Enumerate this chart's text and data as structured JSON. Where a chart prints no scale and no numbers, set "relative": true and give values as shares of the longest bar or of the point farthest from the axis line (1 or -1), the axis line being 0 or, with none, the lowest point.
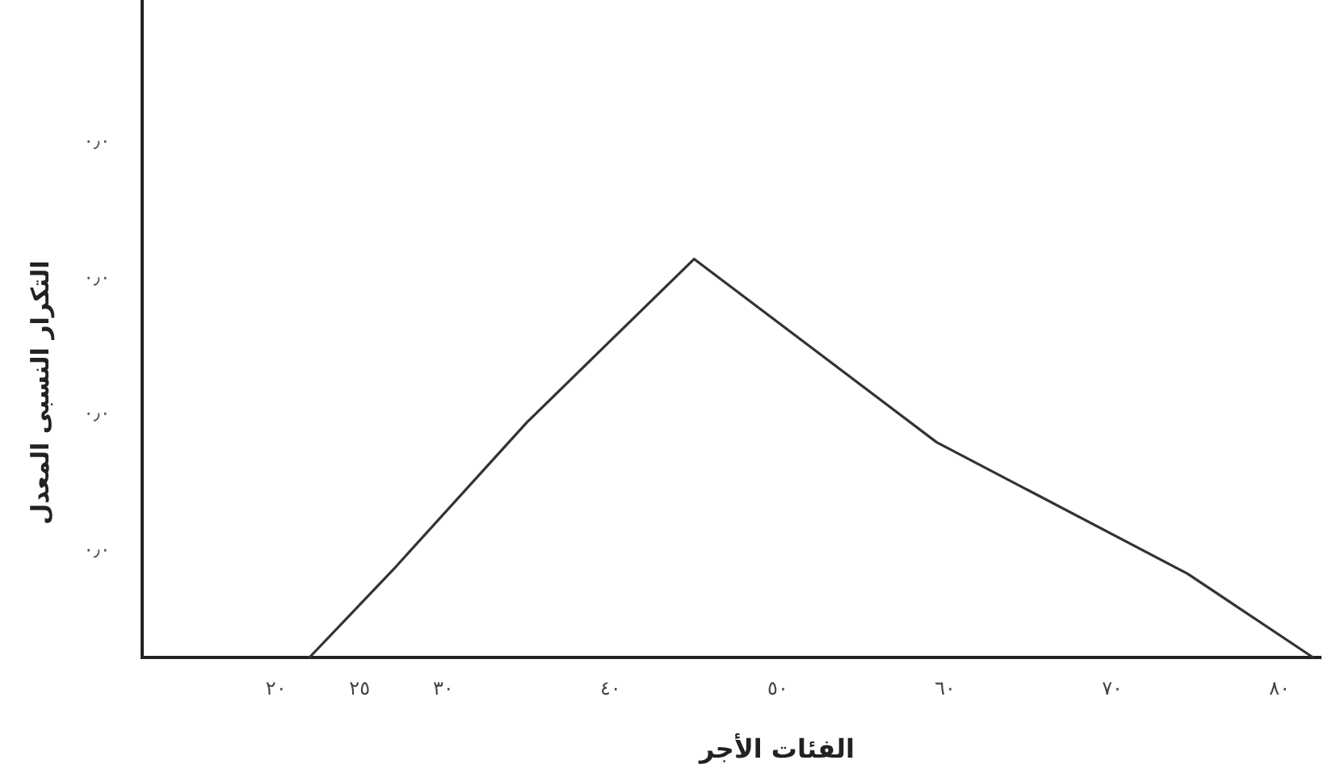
{
  "chart_data": {
    "type": "line",
    "xlabel": "الفئات الأجر",
    "ylabel": "التكرار النسبى المعدل",
    "x": [
      22,
      27,
      35,
      45,
      59.5,
      74.5,
      82
    ],
    "values": [
      0,
      0.22,
      0.59,
      1,
      0.54,
      0.21,
      0
    ],
    "color": "#333333",
    "relative": true,
    "line_style": "solid",
    "xlim": [
      12,
      82.5
    ],
    "xticks": [
      {
        "value": 20,
        "label": "٢٠"
      },
      {
        "value": 25,
        "label": "٢٥"
      },
      {
        "value": 30,
        "label": "٣٠"
      },
      {
        "value": 40,
        "label": "٤٠"
      },
      {
        "value": 50,
        "label": "٥٠"
      },
      {
        "value": 60,
        "label": "٦٠"
      },
      {
        "value": 70,
        "label": "٧٠"
      },
      {
        "value": 80,
        "label": "٨٠"
      }
    ],
    "annotations": [
      "٠٫٠",
      "٠٫٠",
      "٠٫٠",
      "٠٫٠"
    ]
  }
}
